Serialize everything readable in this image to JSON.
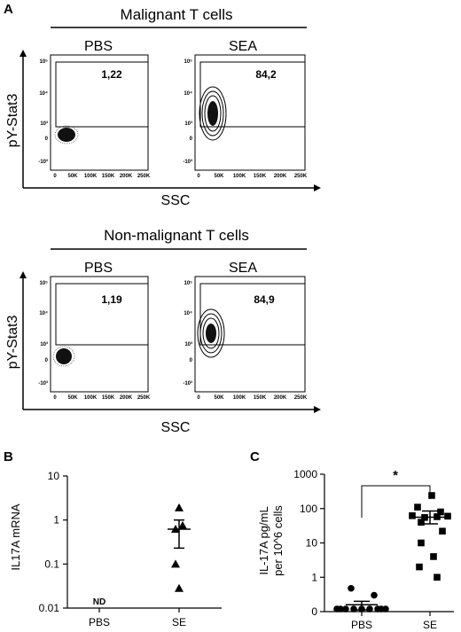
{
  "panelA": {
    "letter": "A",
    "groups": [
      {
        "title": "Malignant T cells",
        "ylabel": "pY-Stat3",
        "xlabel": "SSC",
        "conditions": [
          {
            "label": "PBS",
            "gate_percent": "1,22"
          },
          {
            "label": "SEA",
            "gate_percent": "84,2"
          }
        ]
      },
      {
        "title": "Non-malignant T cells",
        "ylabel": "pY-Stat3",
        "xlabel": "SSC",
        "conditions": [
          {
            "label": "PBS",
            "gate_percent": "1,19"
          },
          {
            "label": "SEA",
            "gate_percent": "84,9"
          }
        ]
      }
    ],
    "x_ticks": [
      "0",
      "50K",
      "100K",
      "150K",
      "200K",
      "250K"
    ],
    "y_ticks": [
      "10⁵",
      "10⁴",
      "10³",
      "0",
      "-10³"
    ]
  },
  "chart_data": [
    {
      "type": "scatter",
      "panel": "B",
      "ylabel": "IL17A mRNA",
      "yscale": "log",
      "ylim": [
        0.01,
        10
      ],
      "y_ticks": [
        "10",
        "1",
        "0.1",
        "0.01"
      ],
      "categories": [
        "PBS",
        "SE"
      ],
      "annotations": [
        {
          "category": "PBS",
          "text": "ND"
        }
      ],
      "series": [
        {
          "category": "SE",
          "marker": "triangle",
          "values": [
            1.9,
            0.75,
            0.62,
            0.1,
            0.028
          ],
          "mean": 0.62,
          "sem_low": 0.23,
          "sem_high": 1.0
        }
      ]
    },
    {
      "type": "scatter",
      "panel": "C",
      "ylabel_line1": "IL-17A pg/mL",
      "ylabel_line2": "per 10^6 cells",
      "yscale": "symlog",
      "ylim": [
        0,
        1000
      ],
      "y_ticks": [
        "1000",
        "100",
        "10",
        "1",
        "0"
      ],
      "categories": [
        "PBS",
        "SE"
      ],
      "significance": "*",
      "series": [
        {
          "category": "PBS",
          "marker": "circle",
          "values": [
            0.6,
            0.4,
            0,
            0,
            0,
            0,
            0,
            0,
            0,
            0,
            0
          ],
          "mean": 0.2,
          "sem_low": 0.05,
          "sem_high": 0.3
        },
        {
          "category": "SE",
          "marker": "square",
          "values": [
            240,
            110,
            80,
            62,
            60,
            55,
            58,
            40,
            22,
            10,
            4,
            2,
            1
          ],
          "mean": 56,
          "sem_low": 36,
          "sem_high": 85
        }
      ]
    }
  ]
}
